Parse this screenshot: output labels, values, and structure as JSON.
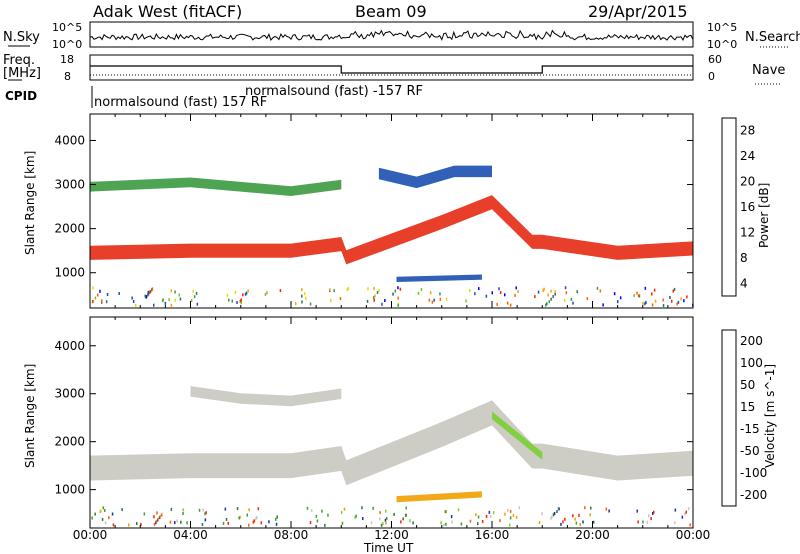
{
  "header": {
    "station": "Adak West (fitACF)",
    "beam": "Beam 09",
    "date": "29/Apr/2015"
  },
  "params": {
    "nsky_label": "N.Sky",
    "nsearch_label": "N.Search",
    "freq_label": "Freq.",
    "freq_unit": "[MHz]",
    "nave_label": "Nave",
    "cpid_label": "CPID",
    "nsky_top": "10^5",
    "nsky_bottom": "10^0",
    "nsearch_top": "10^5",
    "nsearch_bottom": "10^0",
    "freq_top": "18",
    "freq_bottom": "8",
    "nave_top": "60",
    "nave_bottom": "0",
    "cpid_segments": [
      {
        "label": "normalsound (fast) 157 RF"
      },
      {
        "label": "normalsound (fast) -157 RF"
      }
    ]
  },
  "chart_data": [
    {
      "type": "heatmap",
      "name": "power",
      "ylabel": "Slant Range [km]",
      "xlabel": "Time UT",
      "x_ticks": [
        "00:00",
        "04:00",
        "08:00",
        "12:00",
        "16:00",
        "20:00",
        "00:00"
      ],
      "y_ticks": [
        1000,
        2000,
        3000,
        4000
      ],
      "ylim": [
        200,
        4600
      ],
      "xlim_hours": [
        0,
        24
      ],
      "colorbar_label": "Power [dB]",
      "colorbar_ticks": [
        "28",
        "24",
        "20",
        "16",
        "12",
        "8",
        "4"
      ],
      "colorbar_colors": [
        "#0000ff",
        "#1a4fb0",
        "#2a7a5a",
        "#3c9a40",
        "#7ac030",
        "#e0e000",
        "#ffa000",
        "#ff6000",
        "#ff2000"
      ],
      "bands": [
        {
          "x": [
            0,
            4,
            8,
            10,
            10.2,
            14,
            16,
            17.6,
            18,
            21,
            24
          ],
          "y": [
            1450,
            1500,
            1500,
            1650,
            1350,
            2150,
            2600,
            1700,
            1700,
            1450,
            1550
          ],
          "width": 320,
          "color": "#e62a14"
        },
        {
          "x": [
            0,
            4,
            8,
            10
          ],
          "y": [
            2950,
            3050,
            2850,
            3000
          ],
          "width": 220,
          "color": "#3c9a40"
        },
        {
          "x": [
            12.2,
            15.6
          ],
          "y": [
            850,
            900
          ],
          "width": 120,
          "color": "#1a4fb0"
        },
        {
          "x": [
            11.5,
            13,
            14.5,
            16
          ],
          "y": [
            3250,
            3050,
            3300,
            3300
          ],
          "width": 260,
          "color": "#1a4fb0"
        }
      ]
    },
    {
      "type": "heatmap",
      "name": "velocity",
      "ylabel": "Slant Range [km]",
      "xlabel": "Time UT",
      "x_ticks": [
        "00:00",
        "04:00",
        "08:00",
        "12:00",
        "16:00",
        "20:00",
        "00:00"
      ],
      "y_ticks": [
        1000,
        2000,
        3000,
        4000
      ],
      "ylim": [
        200,
        4600
      ],
      "xlim_hours": [
        0,
        24
      ],
      "colorbar_label": "Velocity [m s^-1]",
      "colorbar_ticks": [
        "200",
        "100",
        "50",
        "15",
        "-15",
        "-50",
        "-100",
        "-200"
      ],
      "colorbar_colors": [
        "#1a2fb0",
        "#2a7a3a",
        "#3ca030",
        "#7ad030",
        "#c8c8c0",
        "#f0a000",
        "#ff6000",
        "#ff2000"
      ],
      "bands": [
        {
          "x": [
            0,
            4,
            8,
            10,
            10.2,
            14,
            16,
            17.6,
            18,
            21,
            24
          ],
          "y": [
            1450,
            1500,
            1500,
            1650,
            1350,
            2150,
            2600,
            1700,
            1700,
            1450,
            1550
          ],
          "width": 520,
          "color": "#c8c8c0"
        },
        {
          "x": [
            4,
            6,
            8,
            10
          ],
          "y": [
            3050,
            2900,
            2850,
            3000
          ],
          "width": 220,
          "color": "#c8c8c0"
        },
        {
          "x": [
            12.2,
            15.6
          ],
          "y": [
            800,
            900
          ],
          "width": 130,
          "color": "#f0a000"
        },
        {
          "x": [
            16,
            18
          ],
          "y": [
            2550,
            1700
          ],
          "width": 160,
          "color": "#7ad030"
        }
      ]
    }
  ]
}
